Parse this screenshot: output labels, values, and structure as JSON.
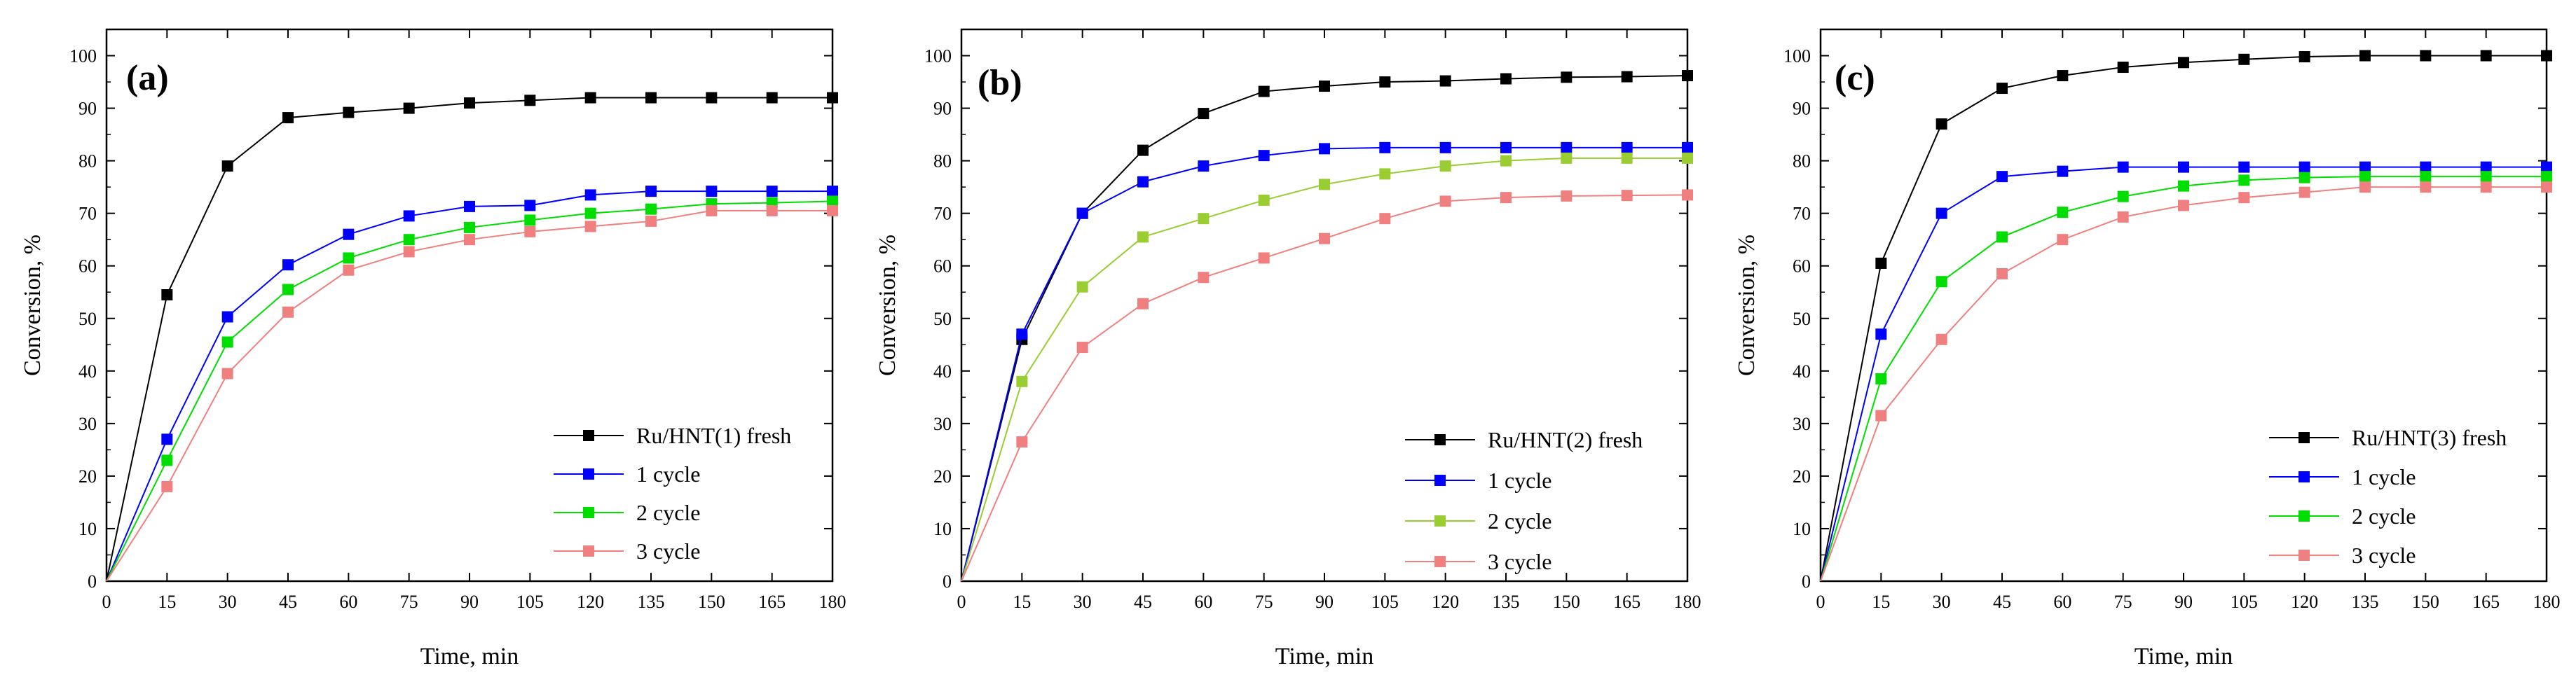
{
  "figure": {
    "panel_count": 3
  },
  "chart_data": [
    {
      "type": "line",
      "panel_label": "(a)",
      "xlabel": "Time, min",
      "ylabel": "Conversion, %",
      "xlim": [
        0,
        180
      ],
      "ylim": [
        0,
        105
      ],
      "xticks": [
        0,
        15,
        30,
        45,
        60,
        75,
        90,
        105,
        120,
        135,
        150,
        165,
        180
      ],
      "yticks": [
        0,
        10,
        20,
        30,
        40,
        50,
        60,
        70,
        80,
        90,
        100
      ],
      "x": [
        0,
        15,
        30,
        45,
        60,
        75,
        90,
        105,
        120,
        135,
        150,
        165,
        180
      ],
      "legend_position": "bottom-right",
      "series": [
        {
          "name": "Ru/HNT(1) fresh",
          "color": "#000000",
          "values": [
            0,
            54.5,
            79,
            88.2,
            89.2,
            90,
            91,
            91.5,
            92,
            92,
            92,
            92,
            92
          ]
        },
        {
          "name": "1 cycle",
          "color": "#0000ff",
          "values": [
            0,
            27,
            50.3,
            60.2,
            66,
            69.5,
            71.3,
            71.5,
            73.5,
            74.2,
            74.2,
            74.2,
            74.2
          ]
        },
        {
          "name": "2 cycle",
          "color": "#00dd00",
          "values": [
            0,
            23,
            45.5,
            55.5,
            61.5,
            65,
            67.3,
            68.7,
            70,
            70.8,
            71.8,
            72,
            72.3
          ]
        },
        {
          "name": "3 cycle",
          "color": "#f08080",
          "values": [
            0,
            18,
            39.5,
            51.2,
            59.2,
            62.7,
            65,
            66.5,
            67.5,
            68.5,
            70.5,
            70.5,
            70.5
          ]
        }
      ]
    },
    {
      "type": "line",
      "panel_label": "(b)",
      "xlabel": "Time, min",
      "ylabel": "Conversion, %",
      "xlim": [
        0,
        180
      ],
      "ylim": [
        0,
        105
      ],
      "xticks": [
        0,
        15,
        30,
        45,
        60,
        75,
        90,
        105,
        120,
        135,
        150,
        165,
        180
      ],
      "yticks": [
        0,
        10,
        20,
        30,
        40,
        50,
        60,
        70,
        80,
        90,
        100
      ],
      "x": [
        0,
        15,
        30,
        45,
        60,
        75,
        90,
        105,
        120,
        135,
        150,
        165,
        180
      ],
      "legend_position": "bottom-right",
      "series": [
        {
          "name": "Ru/HNT(2) fresh",
          "color": "#000000",
          "values": [
            0,
            46,
            70,
            82,
            89,
            93.2,
            94.2,
            95,
            95.2,
            95.6,
            95.9,
            96,
            96.2
          ]
        },
        {
          "name": "1 cycle",
          "color": "#0000ff",
          "values": [
            0,
            47,
            70,
            76,
            79,
            81,
            82.3,
            82.5,
            82.5,
            82.5,
            82.5,
            82.5,
            82.5
          ]
        },
        {
          "name": "2 cycle",
          "color": "#9acd32",
          "values": [
            0,
            38,
            56,
            65.5,
            69,
            72.5,
            75.5,
            77.5,
            79,
            80,
            80.5,
            80.5,
            80.5
          ]
        },
        {
          "name": "3 cycle",
          "color": "#f08080",
          "values": [
            0,
            26.5,
            44.5,
            52.8,
            57.8,
            61.5,
            65.2,
            69,
            72.3,
            73,
            73.3,
            73.4,
            73.5
          ]
        }
      ]
    },
    {
      "type": "line",
      "panel_label": "(c)",
      "xlabel": "Time, min",
      "ylabel": "Conversion, %",
      "xlim": [
        0,
        180
      ],
      "ylim": [
        0,
        105
      ],
      "xticks": [
        0,
        15,
        30,
        45,
        60,
        75,
        90,
        105,
        120,
        135,
        150,
        165,
        180
      ],
      "yticks": [
        0,
        10,
        20,
        30,
        40,
        50,
        60,
        70,
        80,
        90,
        100
      ],
      "x": [
        0,
        15,
        30,
        45,
        60,
        75,
        90,
        105,
        120,
        135,
        150,
        165,
        180
      ],
      "legend_position": "bottom-right",
      "series": [
        {
          "name": "Ru/HNT(3) fresh",
          "color": "#000000",
          "values": [
            0,
            60.5,
            87,
            93.8,
            96.2,
            97.8,
            98.7,
            99.3,
            99.8,
            100,
            100,
            100,
            100
          ]
        },
        {
          "name": "1 cycle",
          "color": "#0000ff",
          "values": [
            0,
            47,
            70,
            77,
            78,
            78.8,
            78.8,
            78.8,
            78.8,
            78.8,
            78.8,
            78.8,
            78.8
          ]
        },
        {
          "name": "2 cycle",
          "color": "#00dd00",
          "values": [
            0,
            38.5,
            57,
            65.5,
            70.2,
            73.2,
            75.2,
            76.3,
            76.8,
            77,
            77,
            77,
            77
          ]
        },
        {
          "name": "3 cycle",
          "color": "#f08080",
          "values": [
            0,
            31.5,
            46,
            58.5,
            65,
            69.3,
            71.5,
            73,
            74,
            75,
            75,
            75,
            75
          ]
        }
      ]
    }
  ]
}
